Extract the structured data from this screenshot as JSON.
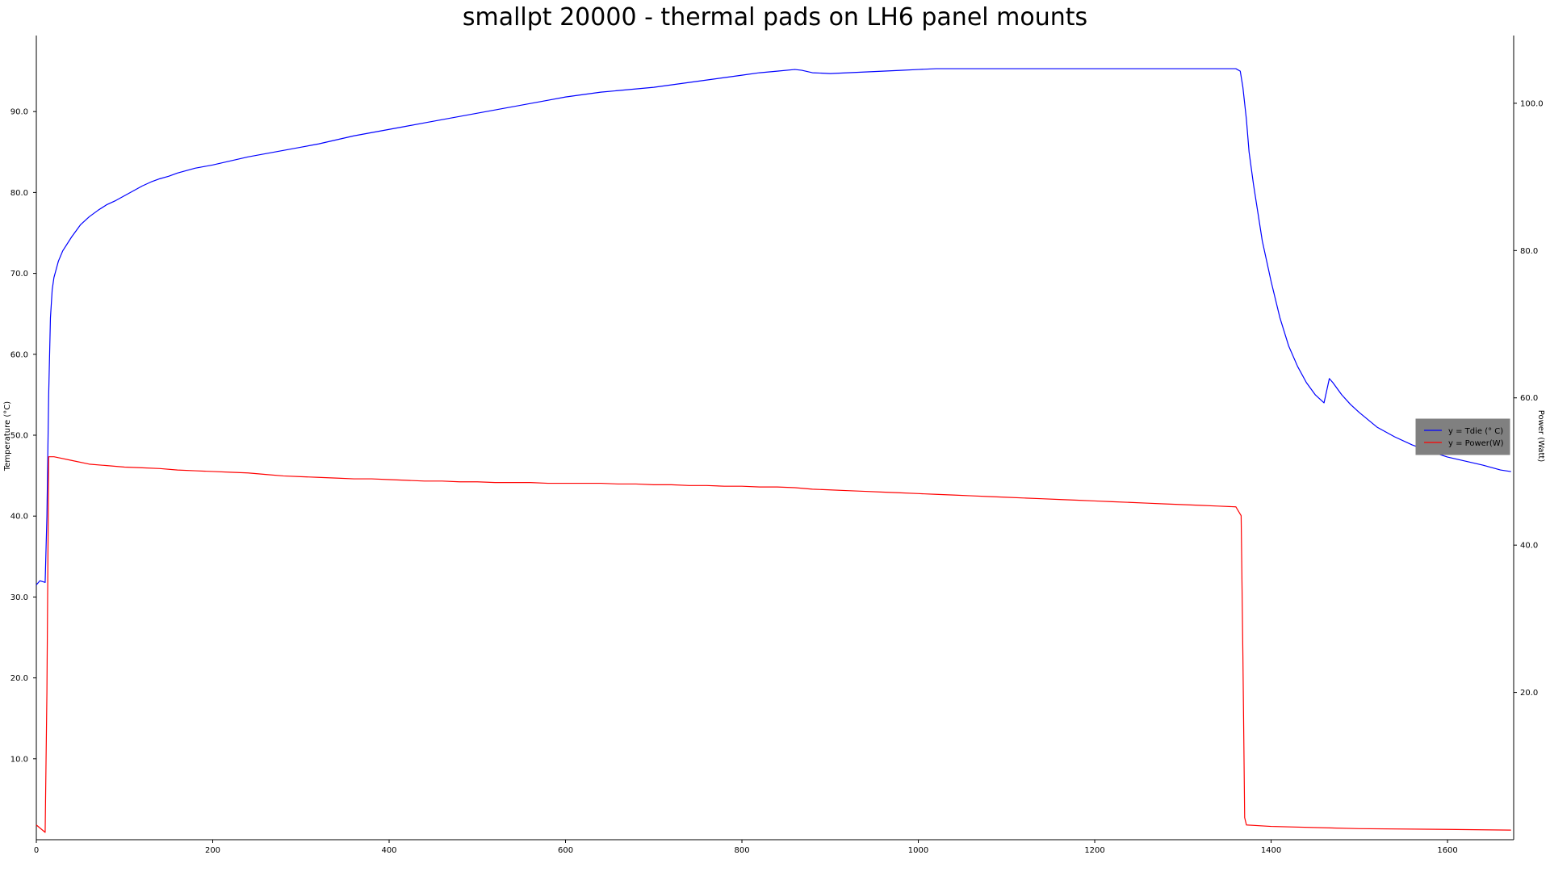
{
  "chart_data": {
    "type": "line",
    "title": "smallpt 20000 - thermal pads on LH6 panel mounts",
    "xlabel": "",
    "ylabel_left": "Temperature (°C)",
    "ylabel_right": "Power (Watt)",
    "xlim": [
      0,
      1675
    ],
    "ylim_left": [
      0,
      99.4
    ],
    "ylim_right": [
      0,
      109.2
    ],
    "x_ticks": [
      0,
      200,
      400,
      600,
      800,
      1000,
      1200,
      1400,
      1600
    ],
    "y_left_ticks": [
      "10.0",
      "20.0",
      "30.0",
      "40.0",
      "50.0",
      "60.0",
      "70.0",
      "80.0",
      "90.0"
    ],
    "y_right_ticks": [
      "20.0",
      "40.0",
      "60.0",
      "80.0",
      "100.0"
    ],
    "grid": false,
    "legend_position": "center-right",
    "series": [
      {
        "name": "y = Tdie (° C)",
        "axis": "left",
        "color": "#0000ff",
        "x": [
          0,
          4,
          10,
          12,
          14,
          16,
          18,
          20,
          25,
          30,
          40,
          50,
          60,
          70,
          80,
          90,
          100,
          110,
          120,
          130,
          140,
          150,
          160,
          170,
          180,
          190,
          200,
          220,
          240,
          260,
          280,
          300,
          320,
          340,
          360,
          380,
          400,
          420,
          440,
          460,
          480,
          500,
          520,
          540,
          560,
          580,
          600,
          620,
          640,
          660,
          680,
          700,
          720,
          740,
          760,
          780,
          800,
          820,
          840,
          860,
          868,
          880,
          900,
          920,
          940,
          960,
          980,
          1000,
          1020,
          1100,
          1200,
          1300,
          1360,
          1365,
          1368,
          1372,
          1375,
          1380,
          1390,
          1400,
          1410,
          1420,
          1430,
          1440,
          1450,
          1460,
          1463,
          1466,
          1470,
          1480,
          1490,
          1500,
          1520,
          1540,
          1560,
          1580,
          1600,
          1620,
          1640,
          1660,
          1672
        ],
        "y": [
          31.5,
          32.0,
          31.8,
          40.0,
          55.0,
          64.5,
          68.0,
          69.5,
          71.5,
          72.8,
          74.5,
          76.0,
          77.0,
          77.8,
          78.5,
          79.0,
          79.6,
          80.2,
          80.8,
          81.3,
          81.7,
          82.0,
          82.4,
          82.7,
          83.0,
          83.2,
          83.4,
          83.9,
          84.4,
          84.8,
          85.2,
          85.6,
          86.0,
          86.5,
          87.0,
          87.4,
          87.8,
          88.2,
          88.6,
          89.0,
          89.4,
          89.8,
          90.2,
          90.6,
          91.0,
          91.4,
          91.8,
          92.1,
          92.4,
          92.6,
          92.8,
          93.0,
          93.3,
          93.6,
          93.9,
          94.2,
          94.5,
          94.8,
          95.0,
          95.2,
          95.1,
          94.8,
          94.7,
          94.8,
          94.9,
          95.0,
          95.1,
          95.2,
          95.3,
          95.3,
          95.3,
          95.3,
          95.3,
          95.0,
          93.0,
          89.0,
          85.0,
          81.0,
          74.0,
          69.0,
          64.5,
          61.0,
          58.5,
          56.5,
          55.0,
          54.0,
          55.5,
          57.0,
          56.5,
          55.0,
          53.8,
          52.8,
          51.0,
          49.8,
          48.8,
          48.0,
          47.3,
          46.8,
          46.3,
          45.7,
          45.5
        ]
      },
      {
        "name": "y = Power(W)",
        "axis": "right",
        "color": "#ff0000",
        "x": [
          0,
          10,
          12,
          14,
          20,
          40,
          60,
          80,
          100,
          120,
          140,
          160,
          180,
          200,
          220,
          240,
          260,
          280,
          300,
          320,
          340,
          360,
          380,
          400,
          420,
          440,
          460,
          480,
          500,
          520,
          540,
          560,
          580,
          600,
          620,
          640,
          660,
          680,
          700,
          720,
          740,
          760,
          780,
          800,
          820,
          840,
          860,
          880,
          900,
          920,
          940,
          960,
          980,
          1000,
          1020,
          1040,
          1060,
          1080,
          1100,
          1120,
          1140,
          1160,
          1180,
          1200,
          1220,
          1240,
          1260,
          1280,
          1300,
          1320,
          1340,
          1360,
          1366,
          1368,
          1370,
          1372,
          1400,
          1500,
          1600,
          1672
        ],
        "y": [
          2.0,
          1.0,
          20.0,
          52.0,
          52.0,
          51.5,
          51.0,
          50.8,
          50.6,
          50.5,
          50.4,
          50.2,
          50.1,
          50.0,
          49.9,
          49.8,
          49.6,
          49.4,
          49.3,
          49.2,
          49.1,
          49.0,
          49.0,
          48.9,
          48.8,
          48.7,
          48.7,
          48.6,
          48.6,
          48.5,
          48.5,
          48.5,
          48.4,
          48.4,
          48.4,
          48.4,
          48.3,
          48.3,
          48.2,
          48.2,
          48.1,
          48.1,
          48.0,
          48.0,
          47.9,
          47.9,
          47.8,
          47.6,
          47.5,
          47.4,
          47.3,
          47.2,
          47.1,
          47.0,
          46.9,
          46.8,
          46.7,
          46.6,
          46.5,
          46.4,
          46.3,
          46.2,
          46.1,
          46.0,
          45.9,
          45.8,
          45.7,
          45.6,
          45.5,
          45.4,
          45.3,
          45.2,
          44.0,
          25.0,
          3.0,
          2.0,
          1.8,
          1.5,
          1.4,
          1.3
        ]
      }
    ]
  }
}
